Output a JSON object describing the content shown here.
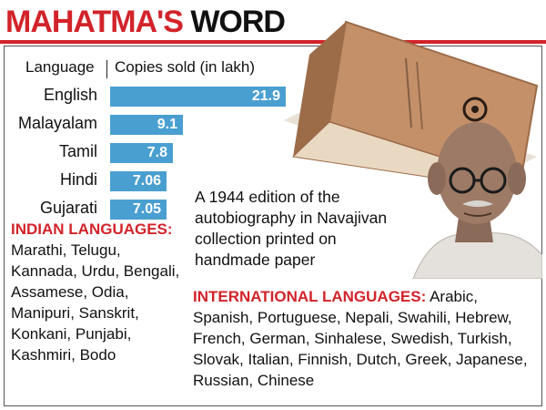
{
  "title": {
    "word1": "MAHATMA'S",
    "word2": "WORD"
  },
  "colors": {
    "accent_red": "#d2232a",
    "bar_blue": "#4a9fd1",
    "book": "#c4906a",
    "book_dark": "#9c6b48"
  },
  "chart_data": {
    "type": "bar",
    "orientation": "horizontal",
    "column_header_category": "Language",
    "column_header_value": "Copies sold (in lakh)",
    "categories": [
      "English",
      "Malayalam",
      "Tamil",
      "Hindi",
      "Gujarati"
    ],
    "values": [
      21.9,
      9.1,
      7.8,
      7.06,
      7.05
    ],
    "value_labels": [
      "21.9",
      "9.1",
      "7.8",
      "7.06",
      "7.05"
    ],
    "xlim": [
      0,
      21.9
    ]
  },
  "caption": "A 1944 edition of the autobiography in Navajivan collection printed on handmade paper",
  "indian_languages": {
    "heading": "INDIAN LANGUAGES:",
    "text": "Marathi, Telugu, Kannada, Urdu, Bengali, Assamese, Odia, Manipuri, Sanskrit, Konkani, Punjabi, Kashmiri, Bodo"
  },
  "international_languages": {
    "heading": "INTERNATIONAL LANGUAGES:",
    "text": "Arabic, Spanish, Portuguese, Nepali, Swahili, Hebrew, French, German, Sinhalese, Swedish, Turkish, Slovak, Italian, Finnish, Dutch, Greek, Japanese, Russian, Chinese"
  },
  "illustrations": {
    "book": "book-illustration",
    "portrait": "gandhi-portrait-illustration"
  }
}
